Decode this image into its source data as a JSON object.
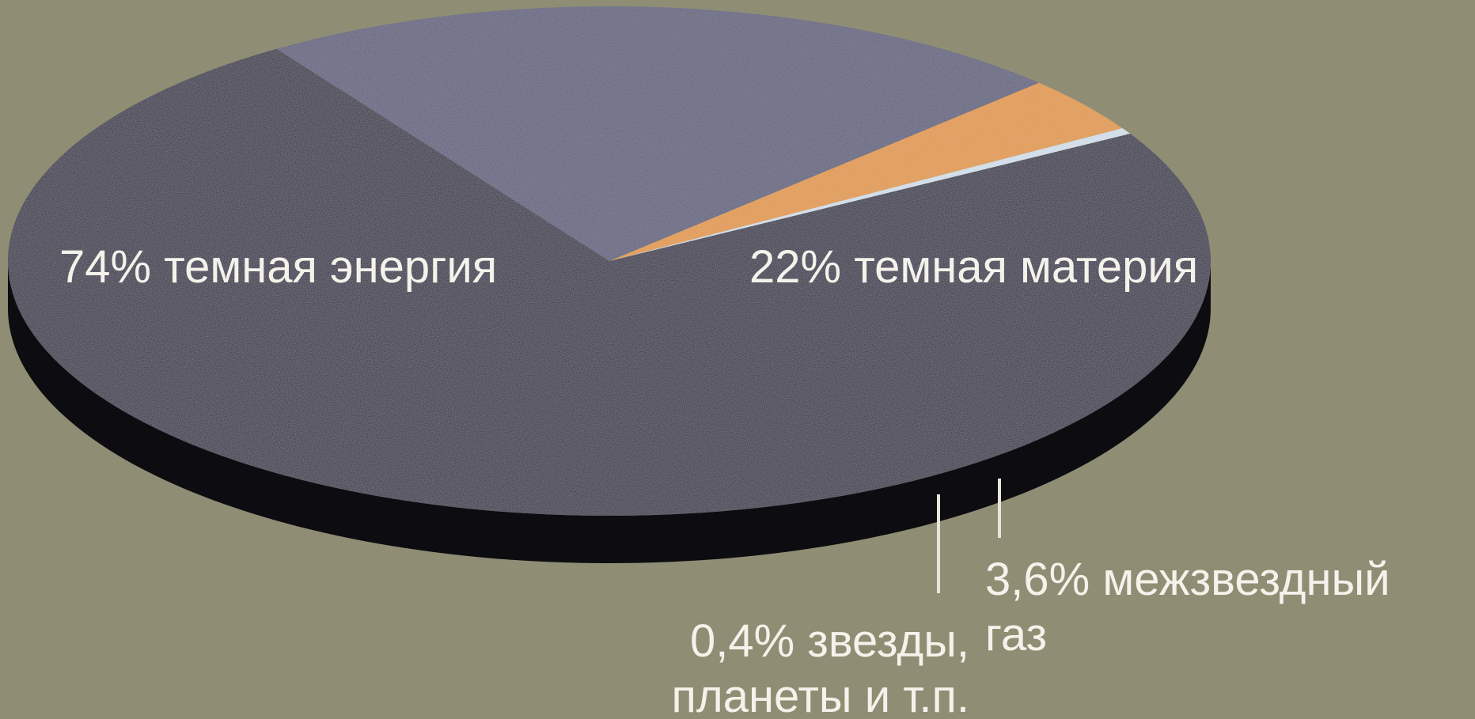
{
  "chart_data": {
    "type": "pie",
    "title": "",
    "legend": "none",
    "slices": [
      {
        "label_lines": [
          "74% темная энергия"
        ],
        "value": 74,
        "color": "#25222b"
      },
      {
        "label_lines": [
          "22% темная материя"
        ],
        "value": 22,
        "color": "#5b5b74"
      },
      {
        "label_lines": [
          "3,6% межзвездный",
          "газ"
        ],
        "value": 3.6,
        "color": "#e89a1e"
      },
      {
        "label_lines": [
          "0,4% звезды,",
          "планеты и т.п."
        ],
        "value": 0.4,
        "color": "#d8e4ec"
      }
    ],
    "side_color": "#0d0c10",
    "background": "#8f8e74"
  }
}
